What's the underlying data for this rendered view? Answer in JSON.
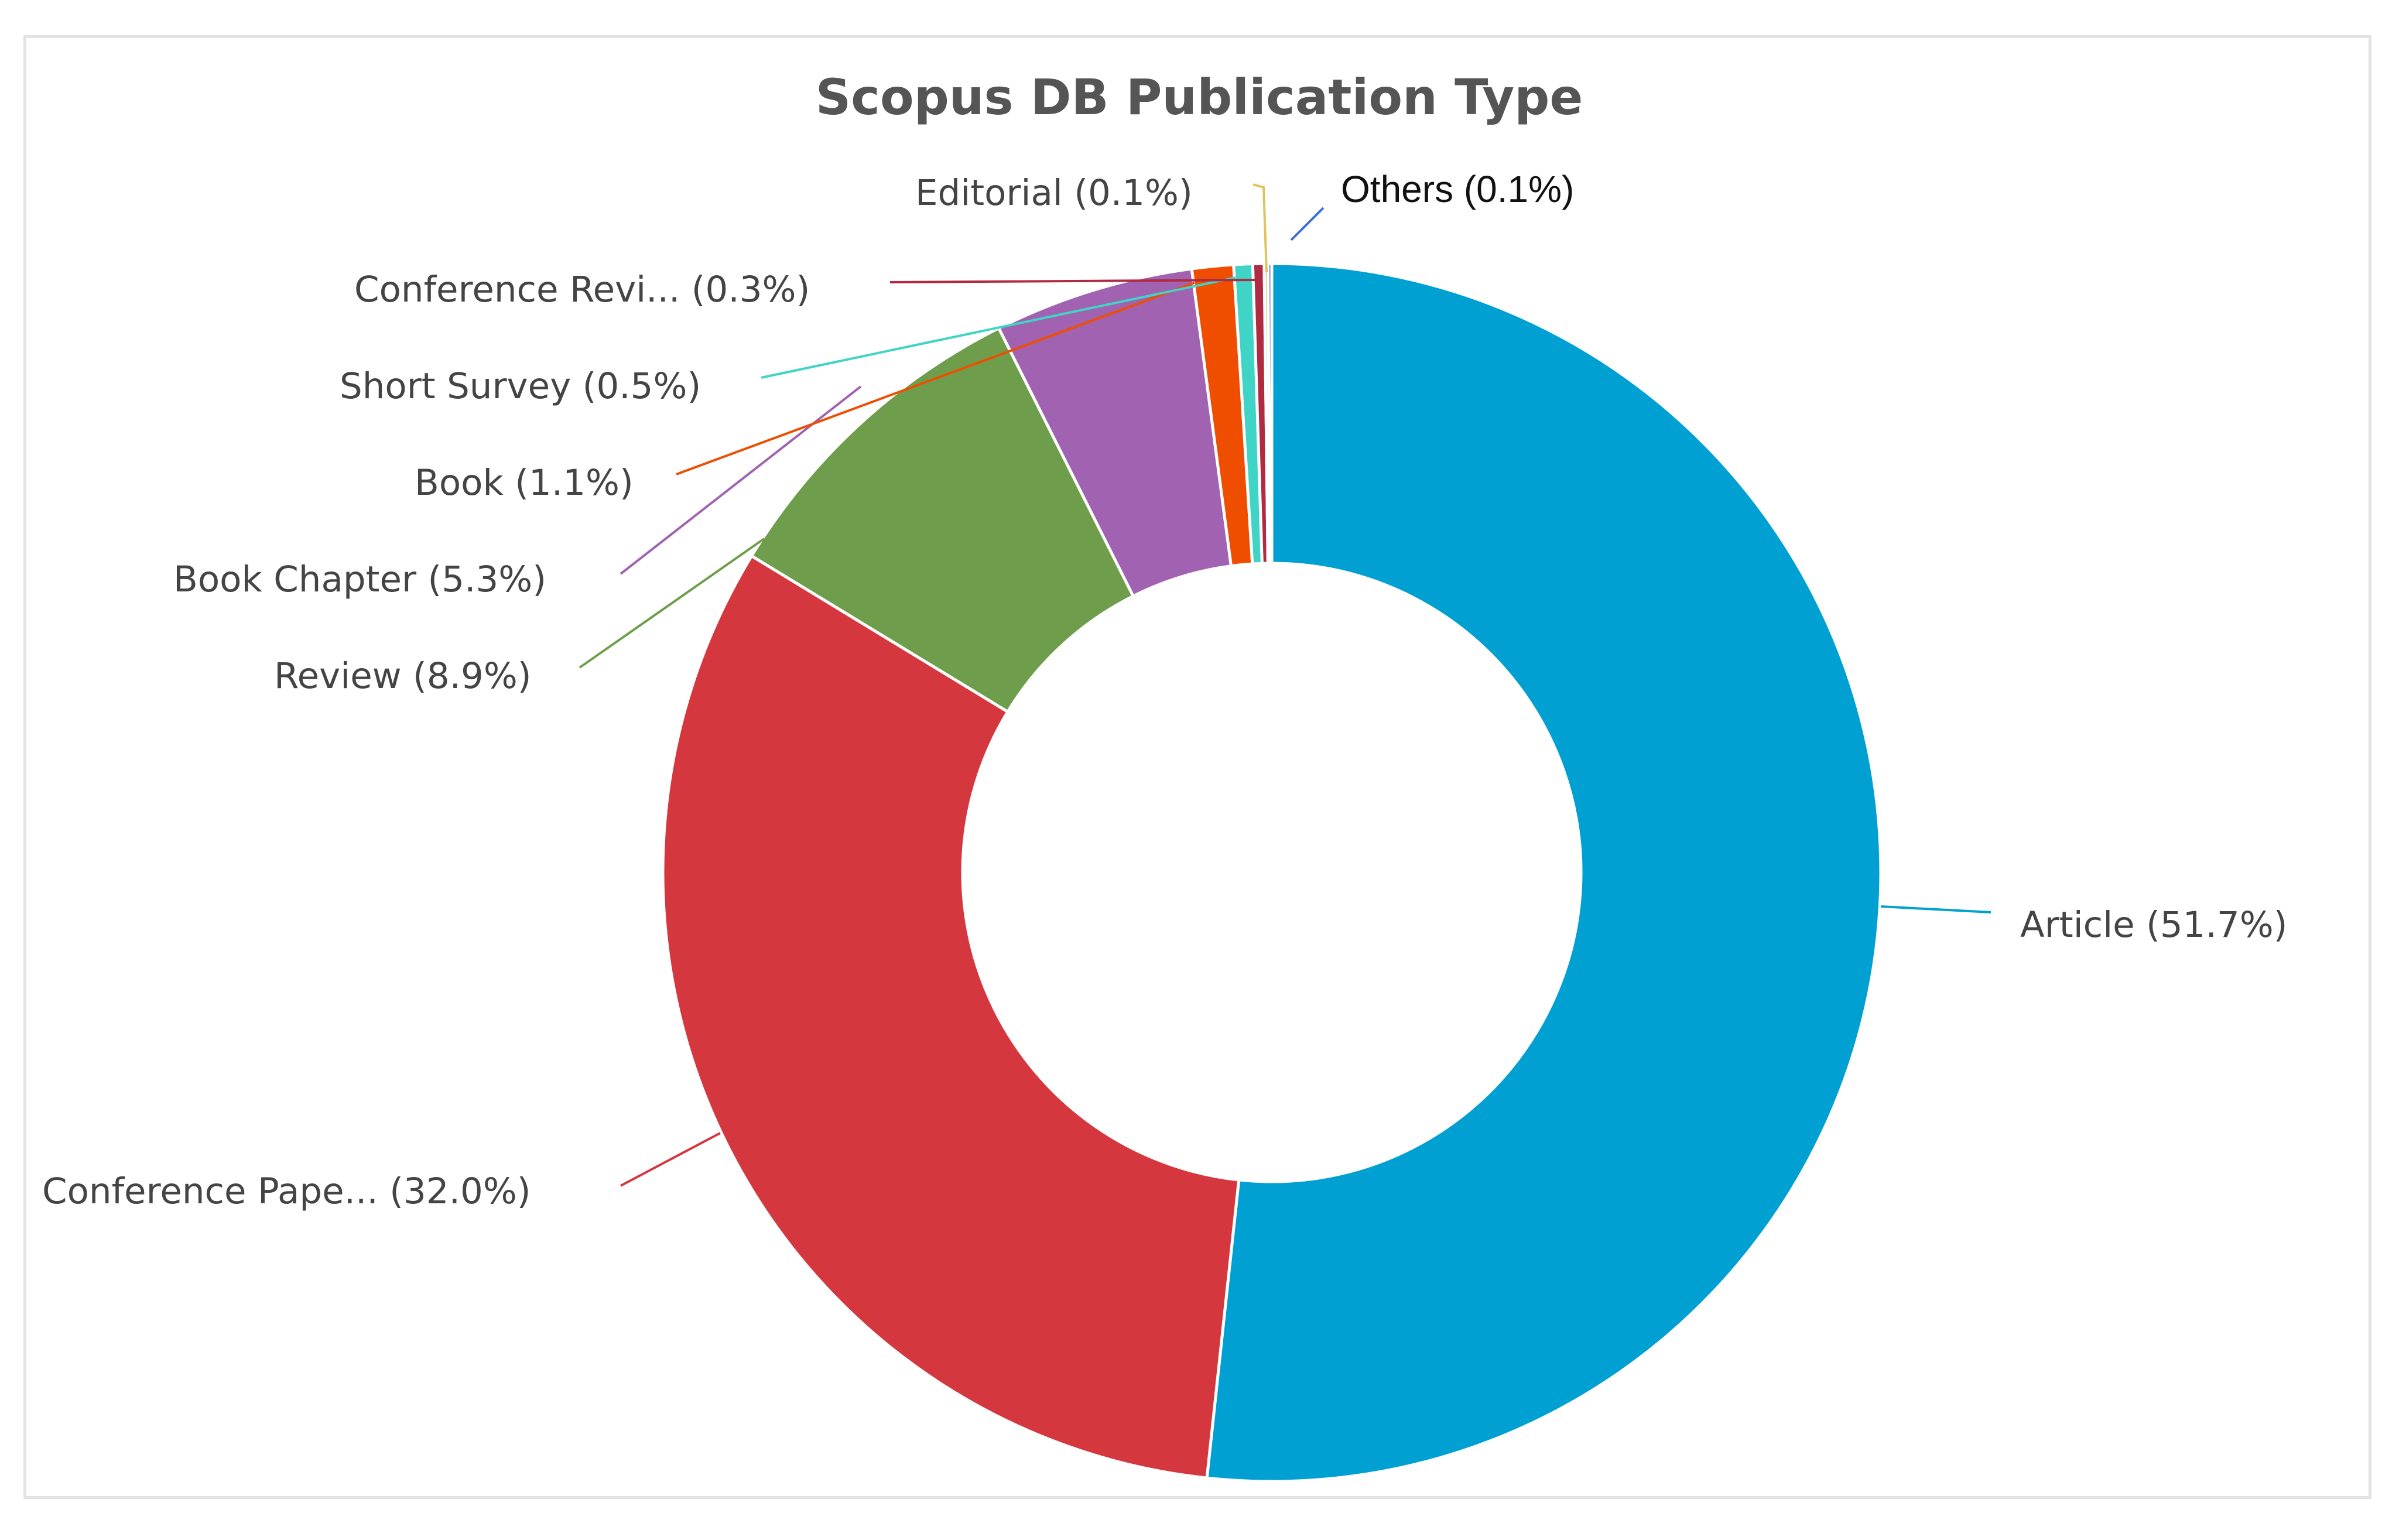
{
  "chart_data": {
    "type": "pie",
    "variant": "donut",
    "title": "Scopus DB Publication Type",
    "legend": "none",
    "slices": [
      {
        "label": "Article (51.7%)",
        "value": 51.7,
        "color": "#00a0d2"
      },
      {
        "label": "Conference Pape... (32.0%)",
        "value": 32.0,
        "color": "#d5373f"
      },
      {
        "label": "Review (8.9%)",
        "value": 8.9,
        "color": "#6e9e4b"
      },
      {
        "label": "Book Chapter (5.3%)",
        "value": 5.3,
        "color": "#a162b2"
      },
      {
        "label": "Book (1.1%)",
        "value": 1.1,
        "color": "#ef4d00"
      },
      {
        "label": "Short Survey (0.5%)",
        "value": 0.5,
        "color": "#3fd4c5"
      },
      {
        "label": "Conference Revi... (0.3%)",
        "value": 0.3,
        "color": "#b02a42"
      },
      {
        "label": "Editorial (0.1%)",
        "value": 0.1,
        "color": "#e0c35a"
      },
      {
        "label": "Others (0.1%)",
        "value": 0.1,
        "color": "#3a6fd8"
      }
    ]
  }
}
